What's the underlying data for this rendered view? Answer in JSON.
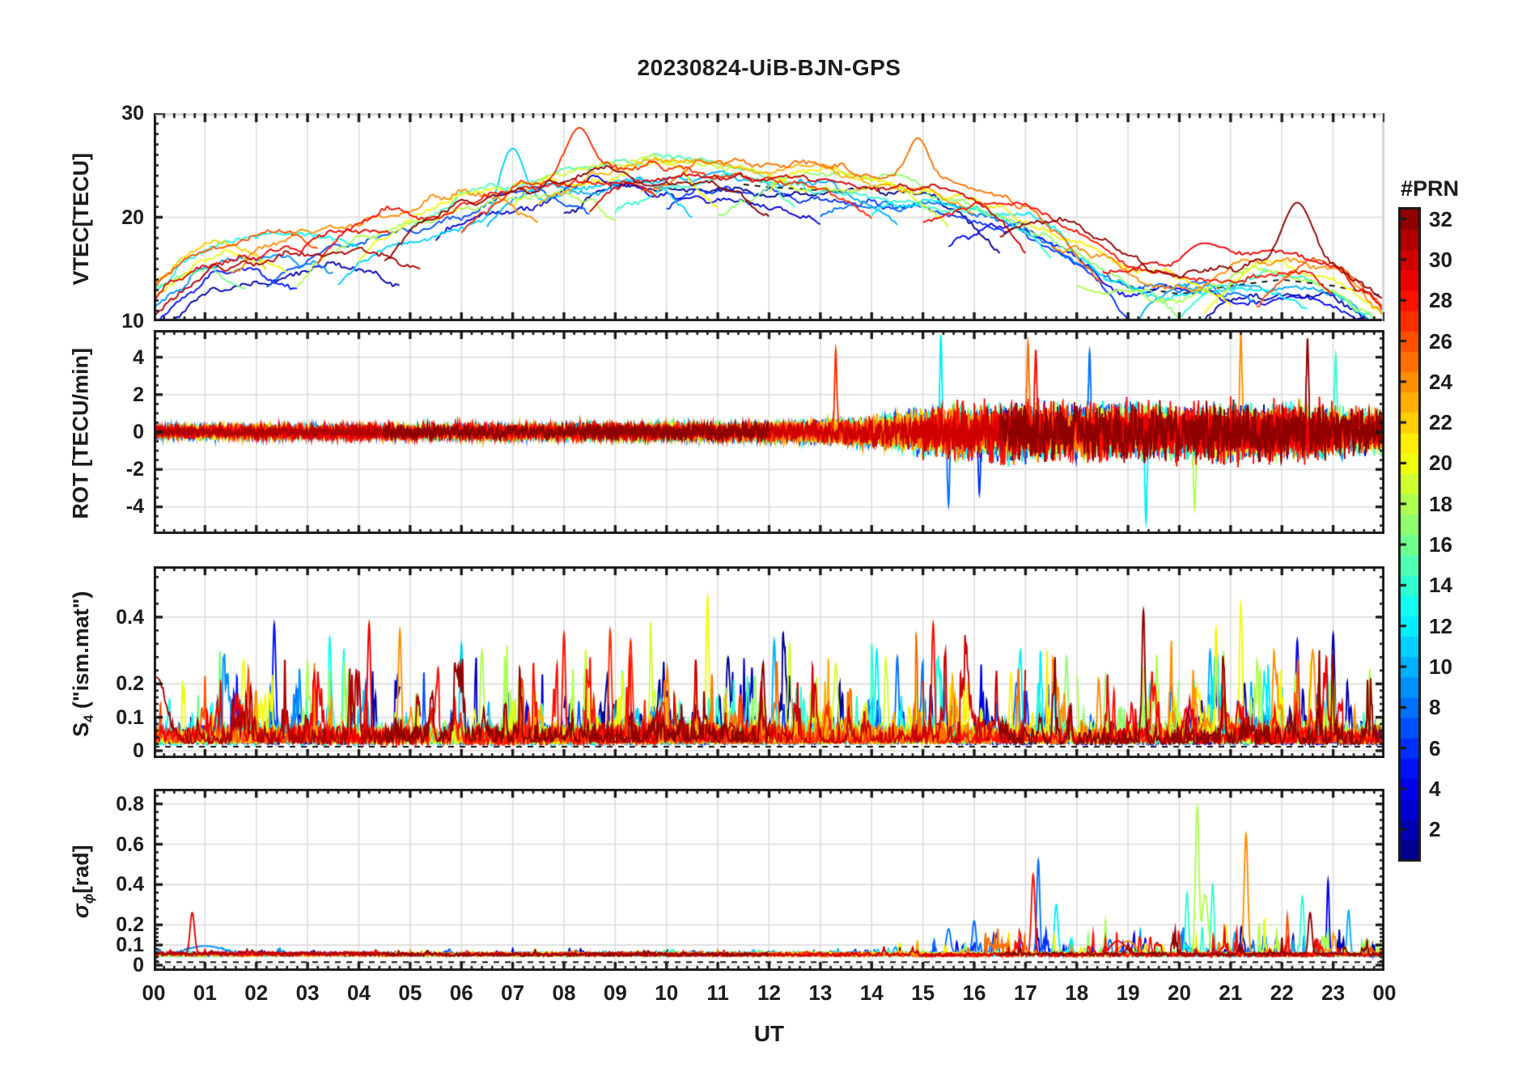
{
  "header": {
    "title": "20230824-UiB-BJN-GPS"
  },
  "chart_data": {
    "type": "line",
    "title": "20230824-UiB-BJN-GPS",
    "xlabel": "UT",
    "x_range": [
      0,
      24
    ],
    "x_ticks": [
      "00",
      "01",
      "02",
      "03",
      "04",
      "05",
      "06",
      "07",
      "08",
      "09",
      "10",
      "11",
      "12",
      "13",
      "14",
      "15",
      "16",
      "17",
      "18",
      "19",
      "20",
      "21",
      "22",
      "23",
      "00"
    ],
    "x_minor_per_hour": 5,
    "grid": true,
    "colorbar": {
      "title": "#PRN",
      "colormap": "jet",
      "n_colors": 32,
      "range": [
        0.5,
        32.5
      ],
      "ticks": [
        2,
        4,
        6,
        8,
        10,
        12,
        14,
        16,
        18,
        20,
        22,
        24,
        26,
        28,
        30,
        32
      ],
      "tick_labels": [
        "2",
        "4",
        "6",
        "8",
        "10",
        "12",
        "14",
        "16",
        "18",
        "20",
        "22",
        "24",
        "26",
        "28",
        "30",
        "32"
      ]
    },
    "arcs_note": "GPS satellite passes: [PRN, start_hour, end_hour, level_offset_TECU]",
    "arcs": [
      [
        31,
        0,
        5.2,
        -1.5
      ],
      [
        29,
        0,
        4.6,
        0.5
      ],
      [
        26,
        0,
        3.2,
        1.5
      ],
      [
        22,
        0,
        2.2,
        0.8
      ],
      [
        20,
        0,
        2.6,
        0.4
      ],
      [
        13,
        0,
        4.0,
        1.2
      ],
      [
        9,
        0,
        3.5,
        -0.8
      ],
      [
        5,
        0,
        2.8,
        -2.0
      ],
      [
        2,
        0,
        4.8,
        -2.5
      ],
      [
        16,
        0,
        1.8,
        0.2
      ],
      [
        24,
        1.5,
        7.5,
        0.6
      ],
      [
        7,
        2.2,
        8.5,
        -1.2
      ],
      [
        18,
        2.8,
        9.0,
        -0.6
      ],
      [
        28,
        3.2,
        9.8,
        0.2
      ],
      [
        11,
        3.6,
        10.5,
        -1.8
      ],
      [
        20,
        4.0,
        11.0,
        0.4
      ],
      [
        32,
        4.5,
        12.0,
        -0.4
      ],
      [
        15,
        5.0,
        12.5,
        0.8
      ],
      [
        3,
        5.5,
        13.0,
        -1.4
      ],
      [
        27,
        6.0,
        14.0,
        0.5
      ],
      [
        10,
        6.5,
        14.5,
        -0.9
      ],
      [
        19,
        7.0,
        15.5,
        0.3
      ],
      [
        23,
        7.5,
        16.0,
        1.0
      ],
      [
        1,
        8.0,
        16.5,
        -1.1
      ],
      [
        30,
        8.5,
        17.0,
        0.6
      ],
      [
        14,
        9.0,
        17.5,
        -0.3
      ],
      [
        25,
        9.5,
        18.5,
        1.2
      ],
      [
        6,
        10.0,
        19.0,
        -1.6
      ],
      [
        17,
        11.0,
        20.0,
        0.2
      ],
      [
        21,
        12.0,
        21.0,
        0.7
      ],
      [
        8,
        13.0,
        21.5,
        -1.0
      ],
      [
        12,
        14.0,
        22.5,
        -0.5
      ],
      [
        28,
        15.0,
        23.0,
        0.9
      ],
      [
        4,
        15.5,
        24,
        -1.2
      ],
      [
        32,
        16.5,
        24,
        1.8
      ],
      [
        24,
        17.5,
        24,
        0.5
      ],
      [
        18,
        18.0,
        24,
        -0.2
      ],
      [
        29,
        18.5,
        24,
        1.4
      ],
      [
        10,
        19.0,
        24,
        -0.7
      ],
      [
        14,
        19.5,
        24,
        -0.4
      ],
      [
        2,
        20.0,
        24,
        -1.5
      ],
      [
        20,
        20.5,
        24,
        0.3
      ],
      [
        26,
        21.5,
        24,
        0.8
      ]
    ],
    "panels": [
      {
        "id": "vtec",
        "ylabel_pre": "VTEC[TECU]",
        "ylabel_sub": "",
        "ylabel_post": "",
        "ylim": [
          10,
          30
        ],
        "yticks": [
          10,
          20,
          30
        ],
        "ytick_labels": [
          "10",
          "20",
          "30"
        ],
        "minor_div": 10,
        "envelope": [
          [
            0,
            15.5
          ],
          [
            1,
            16.2
          ],
          [
            2,
            16.8
          ],
          [
            3,
            17.5
          ],
          [
            4,
            18.8
          ],
          [
            5,
            20.0
          ],
          [
            6,
            21.5
          ],
          [
            7,
            22.8
          ],
          [
            8,
            23.8
          ],
          [
            9,
            24.3
          ],
          [
            10,
            24.3
          ],
          [
            11,
            24.0
          ],
          [
            12,
            23.5
          ],
          [
            13,
            23.2
          ],
          [
            14,
            22.8
          ],
          [
            15,
            22.3
          ],
          [
            16,
            21.3
          ],
          [
            17,
            19.8
          ],
          [
            18,
            17.0
          ],
          [
            19,
            14.0
          ],
          [
            20,
            13.2
          ],
          [
            21,
            14.0
          ],
          [
            22,
            14.6
          ],
          [
            23,
            14.0
          ],
          [
            24,
            13.0
          ]
        ],
        "events": [
          [
            8.3,
            27,
            28.6,
            0.35
          ],
          [
            7.0,
            11,
            26.6,
            0.35
          ],
          [
            14.9,
            25,
            27.6,
            0.3
          ],
          [
            22.3,
            32,
            21.4,
            0.4
          ],
          [
            20.5,
            29,
            17.5,
            0.5
          ]
        ]
      },
      {
        "id": "rot",
        "ylabel_pre": "ROT [TECU/min]",
        "ylabel_sub": "",
        "ylabel_post": "",
        "ylim": [
          -5.45,
          5.45
        ],
        "yticks": [
          -4,
          -2,
          0,
          2,
          4
        ],
        "ytick_labels": [
          "-4",
          "-2",
          "0",
          "2",
          "4"
        ],
        "minor_div": 4,
        "amp_envelope": [
          [
            0,
            0.28
          ],
          [
            8,
            0.32
          ],
          [
            12,
            0.4
          ],
          [
            13.5,
            0.55
          ],
          [
            14.5,
            0.75
          ],
          [
            15,
            1.0
          ],
          [
            16,
            1.1
          ],
          [
            17,
            1.25
          ],
          [
            18,
            1.15
          ],
          [
            19,
            1.2
          ],
          [
            20,
            1.15
          ],
          [
            21,
            1.25
          ],
          [
            22,
            1.2
          ],
          [
            23,
            1.15
          ],
          [
            24,
            1.0
          ]
        ],
        "events": [
          [
            13.3,
            27,
            4.4,
            0.03
          ],
          [
            15.35,
            12,
            5.2,
            0.03
          ],
          [
            15.5,
            8,
            -3.9,
            0.03
          ],
          [
            16.1,
            6,
            -3.3,
            0.03
          ],
          [
            17.05,
            25,
            4.8,
            0.03
          ],
          [
            17.2,
            28,
            4.4,
            0.03
          ],
          [
            18.25,
            8,
            4.3,
            0.03
          ],
          [
            19.35,
            12,
            -4.8,
            0.03
          ],
          [
            20.3,
            18,
            -4.1,
            0.03
          ],
          [
            21.2,
            24,
            5.3,
            0.03
          ],
          [
            22.5,
            32,
            5.0,
            0.03
          ],
          [
            23.05,
            14,
            4.1,
            0.03
          ]
        ]
      },
      {
        "id": "s4",
        "ylabel_pre": "S",
        "ylabel_sub": "4",
        "ylabel_post": " (\"ism.mat\")",
        "ylim": [
          -0.022,
          0.552
        ],
        "yticks": [
          0,
          0.1,
          0.2,
          0.4
        ],
        "ytick_labels": [
          "0",
          "0.1",
          "0.2",
          "0.4"
        ],
        "minor_div": 5,
        "base": 0.022,
        "amp_envelope": [
          [
            0,
            0.9
          ],
          [
            2,
            1.1
          ],
          [
            4,
            1.1
          ],
          [
            6,
            1.0
          ],
          [
            8,
            1.05
          ],
          [
            10,
            1.15
          ],
          [
            12,
            1.0
          ],
          [
            14,
            0.95
          ],
          [
            16,
            1.0
          ],
          [
            18,
            1.0
          ],
          [
            20,
            1.05
          ],
          [
            22,
            1.15
          ],
          [
            24,
            1.0
          ]
        ],
        "events": [
          [
            0.05,
            31,
            0.22,
            0.25
          ],
          [
            2.35,
            5,
            0.38,
            0.04
          ],
          [
            1.75,
            20,
            0.27,
            0.05
          ],
          [
            2.5,
            27,
            0.28,
            0.05
          ],
          [
            4.2,
            29,
            0.38,
            0.04
          ],
          [
            4.8,
            24,
            0.36,
            0.04
          ],
          [
            6.0,
            11,
            0.32,
            0.04
          ],
          [
            6.4,
            18,
            0.3,
            0.04
          ],
          [
            8.0,
            28,
            0.35,
            0.04
          ],
          [
            8.9,
            27,
            0.36,
            0.04
          ],
          [
            9.3,
            27,
            0.33,
            0.04
          ],
          [
            10.8,
            20,
            0.46,
            0.04
          ],
          [
            11.2,
            1,
            0.28,
            0.05
          ],
          [
            12.1,
            10,
            0.33,
            0.04
          ],
          [
            12.4,
            19,
            0.32,
            0.04
          ],
          [
            13.3,
            19,
            0.26,
            0.05
          ],
          [
            14.1,
            12,
            0.3,
            0.04
          ],
          [
            14.5,
            8,
            0.28,
            0.04
          ],
          [
            15.2,
            28,
            0.38,
            0.04
          ],
          [
            15.3,
            14,
            0.28,
            0.04
          ],
          [
            16.9,
            12,
            0.3,
            0.04
          ],
          [
            17.8,
            17,
            0.28,
            0.04
          ],
          [
            19.3,
            32,
            0.42,
            0.04
          ],
          [
            20.6,
            10,
            0.3,
            0.04
          ],
          [
            21.2,
            20,
            0.44,
            0.04
          ],
          [
            22.3,
            4,
            0.33,
            0.04
          ],
          [
            22.6,
            24,
            0.3,
            0.04
          ],
          [
            23.0,
            2,
            0.35,
            0.04
          ]
        ]
      },
      {
        "id": "sigma",
        "ylabel_pre": "σ",
        "ylabel_sub": "ϕ",
        "ylabel_post": "[rad]",
        "ylim": [
          -0.028,
          0.875
        ],
        "yticks": [
          0,
          0.1,
          0.2,
          0.4,
          0.6,
          0.8
        ],
        "ytick_labels": [
          "0",
          "0.1",
          "0.2",
          "0.4",
          "0.6",
          "0.8"
        ],
        "minor_div": 5,
        "base": 0.045,
        "amp_envelope": [
          [
            0,
            0.12
          ],
          [
            14,
            0.12
          ],
          [
            15,
            0.5
          ],
          [
            16,
            0.6
          ],
          [
            17,
            1.0
          ],
          [
            18,
            0.7
          ],
          [
            19,
            0.8
          ],
          [
            20,
            1.0
          ],
          [
            21,
            0.9
          ],
          [
            22,
            1.0
          ],
          [
            23,
            0.8
          ],
          [
            24,
            0.7
          ]
        ],
        "events": [
          [
            0.75,
            29,
            0.26,
            0.06
          ],
          [
            1.0,
            9,
            0.095,
            0.5
          ],
          [
            15.5,
            8,
            0.18,
            0.06
          ],
          [
            16.0,
            8,
            0.22,
            0.05
          ],
          [
            17.15,
            28,
            0.45,
            0.05
          ],
          [
            17.25,
            8,
            0.52,
            0.04
          ],
          [
            17.6,
            12,
            0.3,
            0.05
          ],
          [
            18.8,
            29,
            0.12,
            0.2
          ],
          [
            19.0,
            24,
            0.12,
            0.2
          ],
          [
            20.15,
            14,
            0.36,
            0.04
          ],
          [
            20.35,
            18,
            0.8,
            0.05
          ],
          [
            20.5,
            18,
            0.35,
            0.08
          ],
          [
            20.65,
            14,
            0.4,
            0.04
          ],
          [
            20.9,
            20,
            0.2,
            0.05
          ],
          [
            21.3,
            24,
            0.65,
            0.05
          ],
          [
            22.4,
            14,
            0.34,
            0.04
          ],
          [
            22.55,
            32,
            0.26,
            0.05
          ],
          [
            22.9,
            4,
            0.42,
            0.03
          ],
          [
            23.3,
            10,
            0.27,
            0.04
          ]
        ]
      }
    ]
  }
}
